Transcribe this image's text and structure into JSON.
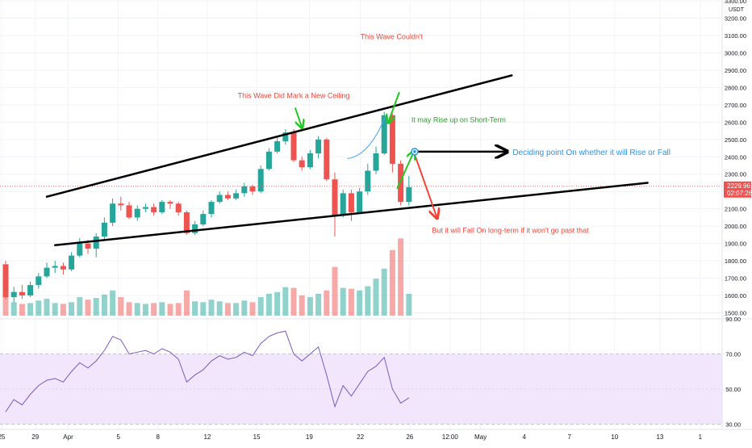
{
  "chart_data": {
    "type": "candlestick",
    "currency": "USDT",
    "price_axis": {
      "ticks": [
        "3300.00",
        "3200.00",
        "3100.00",
        "3000.00",
        "2900.00",
        "2800.00",
        "2700.00",
        "2600.00",
        "2500.00",
        "2400.00",
        "2300.00",
        "2200.00",
        "2100.00",
        "2000.00",
        "1900.00",
        "1800.00",
        "1700.00",
        "1600.00",
        "1500.00"
      ],
      "range": [
        1465,
        3305
      ],
      "current_price": "2229.96",
      "countdown": "02:07:26",
      "current_price_value": 2229.96
    },
    "rsi_axis": {
      "ticks": [
        "90.00",
        "70.00",
        "50.00",
        "30.00"
      ],
      "range": [
        27,
        90
      ],
      "band": [
        30,
        70
      ]
    },
    "time_axis": {
      "labels": [
        "25",
        "29",
        "Apr",
        "5",
        "8",
        "12",
        "15",
        "19",
        "22",
        "26",
        "12:00",
        "May",
        "4",
        "7",
        "10",
        "13",
        "1"
      ],
      "positions": [
        -0.5,
        3.6,
        7.6,
        13.7,
        18.5,
        24.5,
        30.5,
        36.9,
        43.1,
        49.1,
        54.0,
        57.7,
        63.0,
        68.5,
        74.0,
        79.5,
        84.4
      ]
    },
    "colors": {
      "up": "#26a69a",
      "down": "#ef5350",
      "rsi": "#7e57c2",
      "band": "#f1e6fb"
    },
    "candles": [
      [
        1780,
        1590,
        1800,
        1580
      ],
      [
        1590,
        1620,
        1650,
        1560
      ],
      [
        1620,
        1600,
        1660,
        1580
      ],
      [
        1600,
        1660,
        1680,
        1590
      ],
      [
        1660,
        1710,
        1730,
        1640
      ],
      [
        1710,
        1760,
        1790,
        1700
      ],
      [
        1760,
        1770,
        1800,
        1730
      ],
      [
        1770,
        1750,
        1790,
        1720
      ],
      [
        1750,
        1830,
        1850,
        1740
      ],
      [
        1830,
        1900,
        1930,
        1820
      ],
      [
        1900,
        1870,
        1920,
        1840
      ],
      [
        1870,
        1940,
        1960,
        1820
      ],
      [
        1940,
        2020,
        2050,
        1920
      ],
      [
        2020,
        2130,
        2160,
        2000
      ],
      [
        2130,
        2120,
        2170,
        2090
      ],
      [
        2120,
        2050,
        2140,
        2040
      ],
      [
        2050,
        2100,
        2120,
        2030
      ],
      [
        2100,
        2110,
        2130,
        2080
      ],
      [
        2110,
        2080,
        2130,
        2060
      ],
      [
        2080,
        2140,
        2150,
        2070
      ],
      [
        2140,
        2130,
        2150,
        2100
      ],
      [
        2130,
        2080,
        2140,
        2060
      ],
      [
        2080,
        1960,
        2090,
        1950
      ],
      [
        1960,
        2010,
        2030,
        1950
      ],
      [
        2010,
        2070,
        2090,
        2000
      ],
      [
        2070,
        2140,
        2150,
        2050
      ],
      [
        2140,
        2180,
        2200,
        2130
      ],
      [
        2180,
        2160,
        2200,
        2150
      ],
      [
        2160,
        2190,
        2210,
        2150
      ],
      [
        2190,
        2230,
        2250,
        2170
      ],
      [
        2230,
        2200,
        2240,
        2180
      ],
      [
        2200,
        2330,
        2350,
        2190
      ],
      [
        2330,
        2430,
        2450,
        2320
      ],
      [
        2430,
        2490,
        2510,
        2420
      ],
      [
        2490,
        2540,
        2560,
        2470
      ],
      [
        2540,
        2380,
        2560,
        2370
      ],
      [
        2380,
        2340,
        2400,
        2320
      ],
      [
        2340,
        2420,
        2440,
        2330
      ],
      [
        2420,
        2500,
        2520,
        2390
      ],
      [
        2500,
        2270,
        2510,
        2260
      ],
      [
        2270,
        2060,
        2310,
        1940
      ],
      [
        2060,
        2190,
        2210,
        2050
      ],
      [
        2190,
        2080,
        2210,
        2030
      ],
      [
        2080,
        2200,
        2220,
        2070
      ],
      [
        2200,
        2320,
        2360,
        2180
      ],
      [
        2320,
        2420,
        2460,
        2300
      ],
      [
        2420,
        2640,
        2660,
        2410
      ],
      [
        2640,
        2360,
        2650,
        2310
      ],
      [
        2360,
        2140,
        2380,
        2120
      ],
      [
        2140,
        2225,
        2290,
        2120
      ]
    ],
    "volumes": [
      240,
      160,
      140,
      150,
      180,
      200,
      150,
      140,
      160,
      220,
      190,
      210,
      250,
      300,
      220,
      160,
      150,
      140,
      150,
      160,
      140,
      150,
      300,
      170,
      160,
      190,
      170,
      150,
      150,
      180,
      160,
      220,
      260,
      280,
      340,
      330,
      240,
      220,
      260,
      300,
      580,
      330,
      320,
      300,
      350,
      440,
      560,
      780,
      920,
      260
    ],
    "rsi": [
      37,
      44,
      41,
      47,
      52,
      55,
      56,
      54,
      60,
      65,
      62,
      66,
      72,
      80,
      78,
      70,
      71,
      72,
      70,
      73,
      71,
      67,
      54,
      58,
      61,
      66,
      69,
      67,
      68,
      71,
      69,
      76,
      80,
      82,
      83,
      70,
      66,
      70,
      74,
      58,
      40,
      52,
      46,
      53,
      60,
      63,
      68,
      50,
      42,
      45
    ],
    "annotations": {
      "ceiling": "This Wave Did Mark a New Ceiling",
      "couldnt": "This Wave Couldn't",
      "rise_short": "It may Rise up on Short-Term",
      "deciding": "Deciding point On whether it will Rise or Fall",
      "fall_long": "But it will Fall On long-term if it won't go past that"
    },
    "drawing_colors": {
      "red_text": "#f44336",
      "green": "#21c821",
      "blue_text": "#2196f3",
      "trend": "#000000",
      "curve": "#42a5f5"
    },
    "upper_trendline": [
      [
        5,
        2170
      ],
      [
        61.5,
        2870
      ]
    ],
    "lower_trendline": [
      [
        6,
        1890
      ],
      [
        78,
        2250
      ]
    ],
    "horizontal_arrow": [
      [
        49.7,
        2430
      ],
      [
        60.8,
        2430
      ]
    ],
    "down_arrow": [
      [
        49.8,
        2400
      ],
      [
        52.4,
        2050
      ]
    ],
    "up_arrow": [
      [
        47.6,
        2220
      ],
      [
        49.6,
        2430
      ]
    ],
    "arrow_ceiling": [
      [
        35.2,
        2680
      ],
      [
        36.0,
        2570
      ]
    ],
    "arrow_couldnt": [
      [
        47.8,
        2770
      ],
      [
        46.5,
        2600
      ]
    ],
    "curve_points": [
      [
        41.5,
        2390
      ],
      [
        43.5,
        2400
      ],
      [
        45.0,
        2500
      ],
      [
        46.2,
        2640
      ]
    ]
  }
}
